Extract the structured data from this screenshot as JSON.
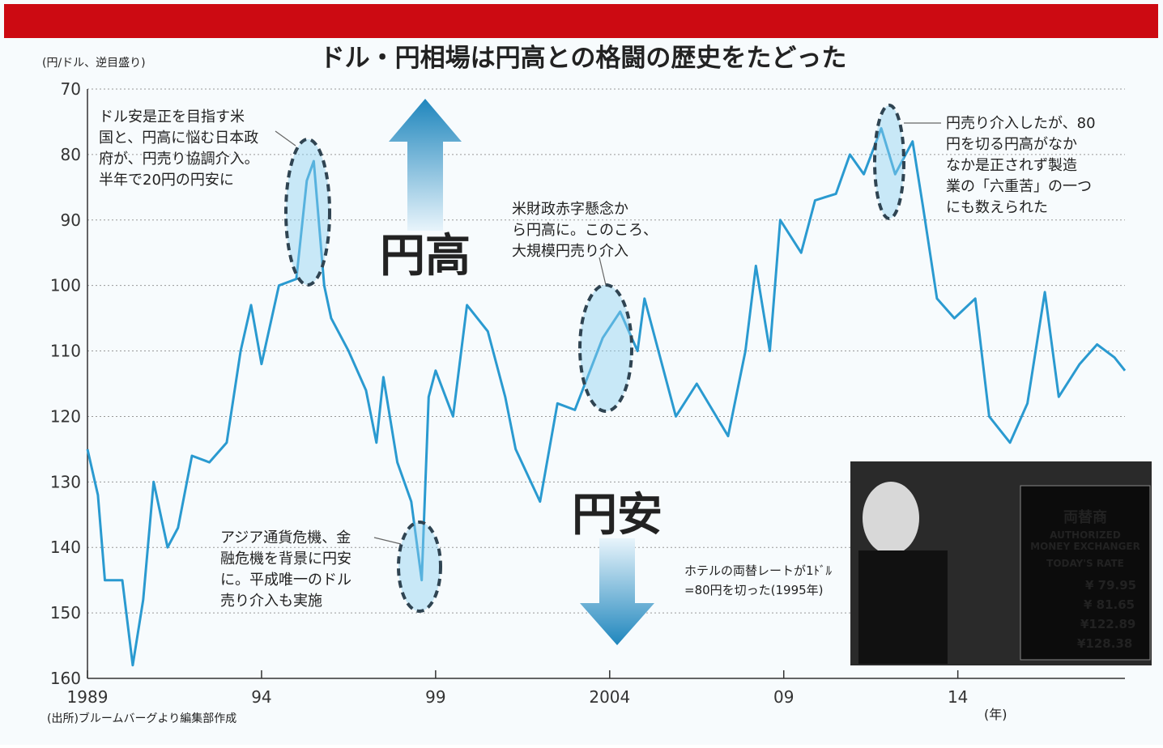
{
  "chart_data": {
    "type": "line",
    "title": "ドル・円相場は円高との格闘の歴史をたどった",
    "y_label": "(円/ドル、逆目盛り)",
    "x_label": "(年)",
    "source": "(出所)ブルームバーグより編集部作成",
    "invert_y": true,
    "grid": true,
    "ylim": [
      70,
      160
    ],
    "yticks": [
      70,
      80,
      90,
      100,
      110,
      120,
      130,
      140,
      150,
      160
    ],
    "xlim": [
      1989,
      2018.8
    ],
    "xticks": [
      1989,
      {
        "value": 1994,
        "label": "94"
      },
      {
        "value": 1999,
        "label": "99"
      },
      2004,
      {
        "value": 2009,
        "label": "09"
      },
      {
        "value": 2014,
        "label": "14"
      }
    ],
    "series": [
      {
        "color": "#2a9ad0",
        "x": [
          1989.0,
          1989.3,
          1989.5,
          1990.0,
          1990.3,
          1990.6,
          1990.9,
          1991.3,
          1991.6,
          1992.0,
          1992.5,
          1993.0,
          1993.4,
          1993.7,
          1994.0,
          1994.5,
          1995.0,
          1995.3,
          1995.5,
          1995.8,
          1996.0,
          1996.5,
          1997.0,
          1997.3,
          1997.5,
          1997.9,
          1998.3,
          1998.6,
          1998.8,
          1999.0,
          1999.5,
          1999.9,
          2000.5,
          2001.0,
          2001.3,
          2002.0,
          2002.5,
          2003.0,
          2003.8,
          2004.3,
          2004.8,
          2005.0,
          2005.9,
          2006.5,
          2007.4,
          2007.9,
          2008.2,
          2008.6,
          2008.9,
          2009.5,
          2009.9,
          2010.5,
          2010.9,
          2011.3,
          2011.8,
          2012.2,
          2012.7,
          2013.0,
          2013.4,
          2013.9,
          2014.5,
          2014.9,
          2015.5,
          2016.0,
          2016.5,
          2016.9,
          2017.5,
          2018.0,
          2018.5,
          2018.8
        ],
        "values": [
          125,
          132,
          145,
          145,
          158,
          148,
          130,
          140,
          137,
          126,
          127,
          124,
          110,
          103,
          112,
          100,
          99,
          84,
          81,
          100,
          105,
          110,
          116,
          124,
          114,
          127,
          133,
          145,
          117,
          113,
          120,
          103,
          107,
          117,
          125,
          133,
          118,
          119,
          108,
          104,
          110,
          102,
          120,
          115,
          123,
          110,
          97,
          110,
          90,
          95,
          87,
          86,
          80,
          83,
          76,
          83,
          78,
          88,
          102,
          105,
          102,
          120,
          124,
          118,
          101,
          117,
          112,
          109,
          111,
          113
        ]
      }
    ],
    "big_labels": {
      "up": "円高",
      "down": "円安"
    },
    "annotations": [
      [
        "ドル安是正を目指す米",
        "国と、円高に悩む日本政",
        "府が、円売り協調介入。",
        "半年で20円の円安に"
      ],
      [
        "アジア通貨危機、金",
        "融危機を背景に円安",
        "に。平成唯一のドル",
        "売り介入も実施"
      ],
      [
        "米財政赤字懸念か",
        "ら円高に。このころ、",
        "大規模円売り介入"
      ],
      [
        "円売り介入したが、80",
        "円を切る円高がなか",
        "なか是正されず製造",
        "業の「六重苦」の一つ",
        "にも数えられた"
      ]
    ],
    "photo": {
      "caption": [
        "ホテルの両替レートが1ﾄﾞﾙ",
        "=80円を切った(1995年)"
      ],
      "texts": [
        "両替商",
        "AUTHORIZED",
        "MONEY EXCHANGER",
        "TODAY'S RATE",
        "¥ 79.95",
        "¥ 81.65",
        "¥122.89",
        "¥128.38"
      ]
    }
  }
}
